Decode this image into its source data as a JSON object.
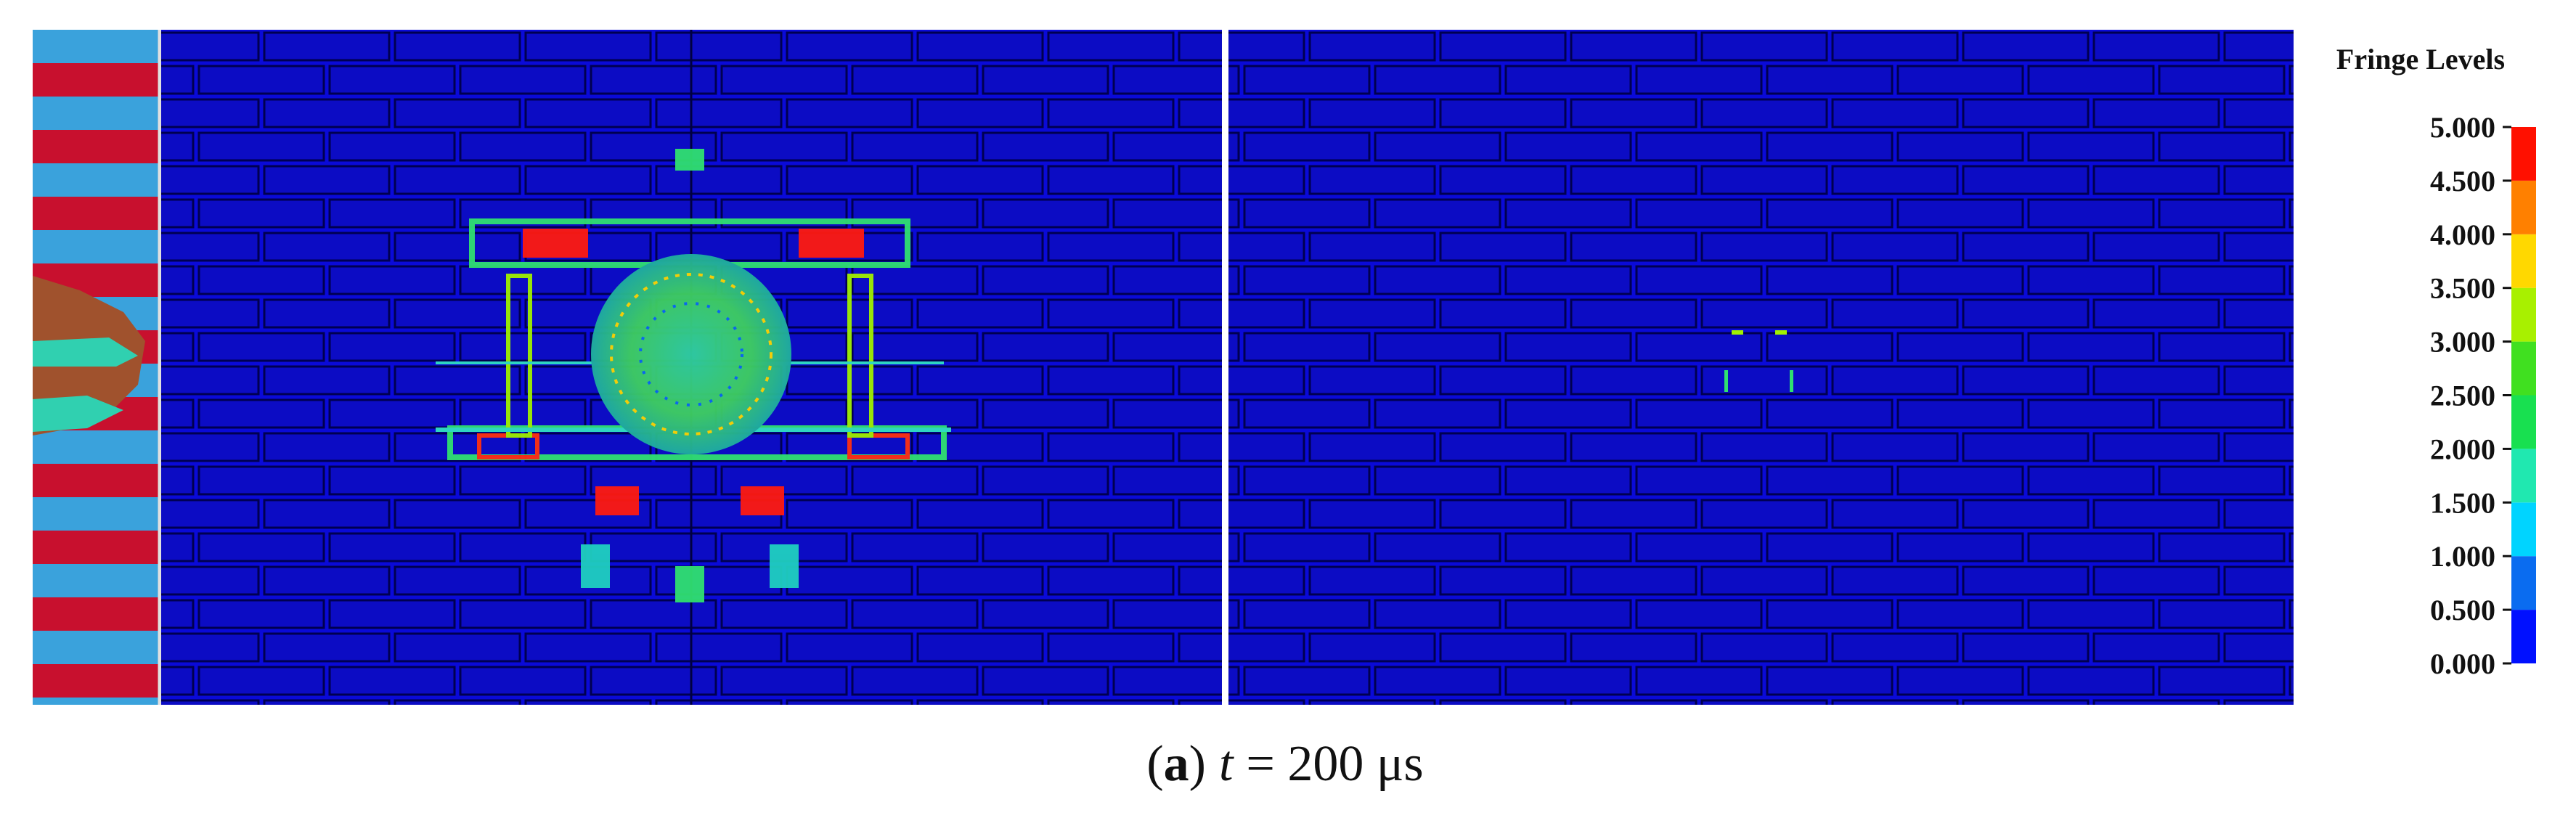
{
  "colorbar": {
    "title": "Fringe Levels",
    "ticks": [
      {
        "value": 0,
        "label": "0.000"
      },
      {
        "value": 0.5,
        "label": "0.500"
      },
      {
        "value": 1,
        "label": "1.000"
      },
      {
        "value": 1.5,
        "label": "1.500"
      },
      {
        "value": 2,
        "label": "2.000"
      },
      {
        "value": 2.5,
        "label": "2.500"
      },
      {
        "value": 3,
        "label": "3.000"
      },
      {
        "value": 3.5,
        "label": "3.500"
      },
      {
        "value": 4,
        "label": "4.000"
      },
      {
        "value": 4.5,
        "label": "4.500"
      },
      {
        "value": 5,
        "label": "5.000"
      }
    ],
    "colors": [
      "#0010ff",
      "#0a6cf0",
      "#00d4ff",
      "#20e8b0",
      "#18e050",
      "#40e020",
      "#a8f000",
      "#ffd800",
      "#ff8000",
      "#ff1000"
    ],
    "lim": [
      0,
      5
    ]
  },
  "caption": {
    "open": "(",
    "label": "a",
    "close": ")",
    "variable": "t",
    "rest": "= 200 μs"
  }
}
